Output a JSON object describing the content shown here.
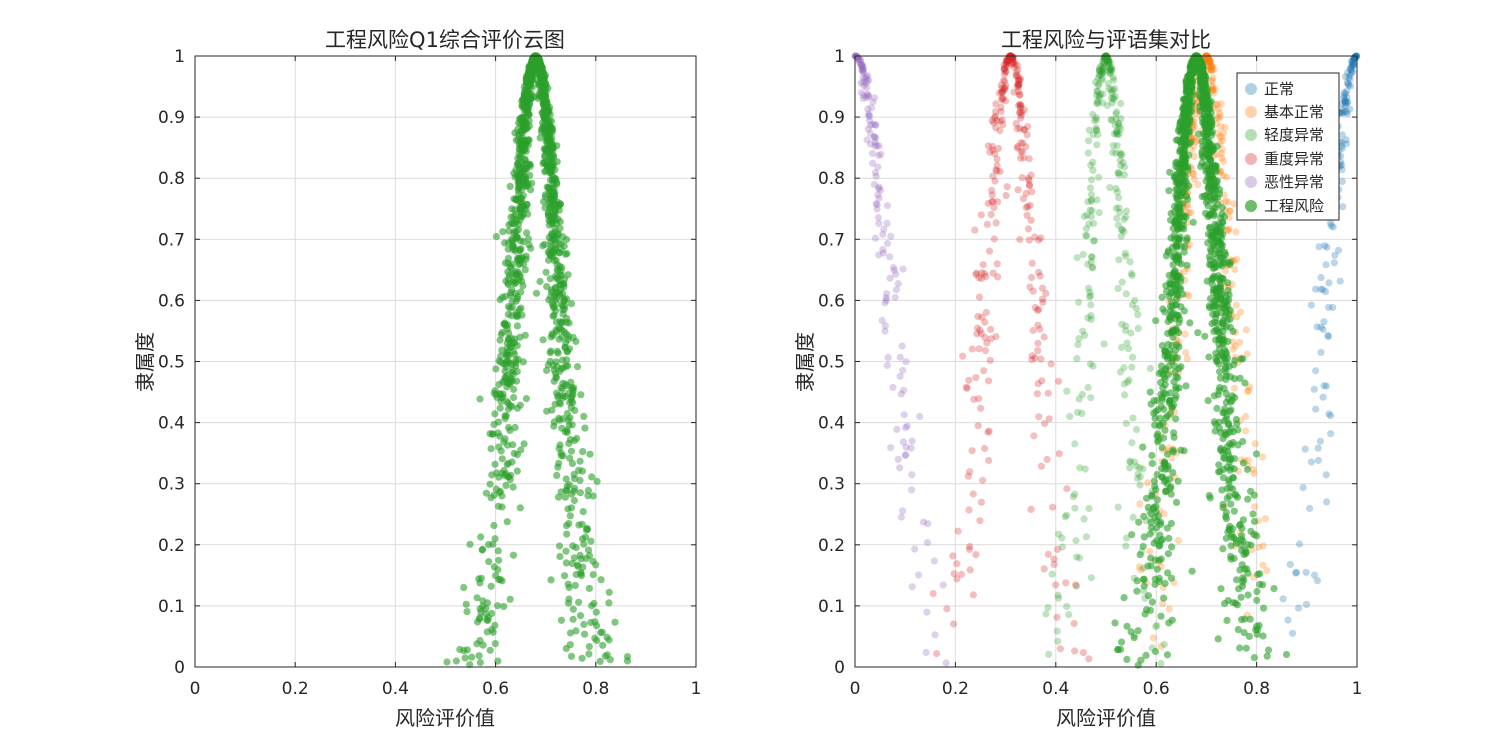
{
  "chart_data": [
    {
      "type": "scatter",
      "title": "工程风险Q1综合评价云图",
      "xlabel": "风险评价值",
      "ylabel": "隶属度",
      "xlim": [
        0,
        1
      ],
      "ylim": [
        0,
        1
      ],
      "xticks": [
        "0",
        "0.2",
        "0.4",
        "0.6",
        "0.8",
        "1"
      ],
      "yticks": [
        "0",
        "0.1",
        "0.2",
        "0.3",
        "0.4",
        "0.5",
        "0.6",
        "0.7",
        "0.8",
        "0.9",
        "1"
      ],
      "grid": true,
      "series": [
        {
          "ex": 0.68,
          "en": 0.045,
          "he": 0.012,
          "n": 1500,
          "color": "#2ca02c",
          "opacity": 0.6
        }
      ]
    },
    {
      "type": "scatter",
      "title": "工程风险与评语集对比",
      "xlabel": "风险评价值",
      "ylabel": "隶属度",
      "xlim": [
        0,
        1
      ],
      "ylim": [
        0,
        1
      ],
      "xticks": [
        "0",
        "0.2",
        "0.4",
        "0.6",
        "0.8",
        "1"
      ],
      "yticks": [
        "0",
        "0.1",
        "0.2",
        "0.3",
        "0.4",
        "0.5",
        "0.6",
        "0.7",
        "0.8",
        "0.9",
        "1"
      ],
      "grid": true,
      "legend_position": "top-right",
      "series": [
        {
          "name": "正常",
          "ex": 1.0,
          "en": 0.06,
          "he": 0.012,
          "n": 300,
          "color": "#1f77b4",
          "opacity": 0.3
        },
        {
          "name": "基本正常",
          "ex": 0.7,
          "en": 0.05,
          "he": 0.012,
          "n": 300,
          "color": "#ff7f0e",
          "opacity": 0.3
        },
        {
          "name": "轻度异常",
          "ex": 0.5,
          "en": 0.04,
          "he": 0.012,
          "n": 300,
          "color": "#2ca02c",
          "opacity": 0.3
        },
        {
          "name": "重度异常",
          "ex": 0.31,
          "en": 0.05,
          "he": 0.012,
          "n": 300,
          "color": "#d62728",
          "opacity": 0.3
        },
        {
          "name": "恶性异常",
          "ex": 0.0,
          "en": 0.07,
          "he": 0.012,
          "n": 300,
          "color": "#9467bd",
          "opacity": 0.3
        },
        {
          "name": "工程风险",
          "ex": 0.68,
          "en": 0.045,
          "he": 0.012,
          "n": 1500,
          "color": "#2ca02c",
          "opacity": 0.6
        }
      ]
    }
  ]
}
